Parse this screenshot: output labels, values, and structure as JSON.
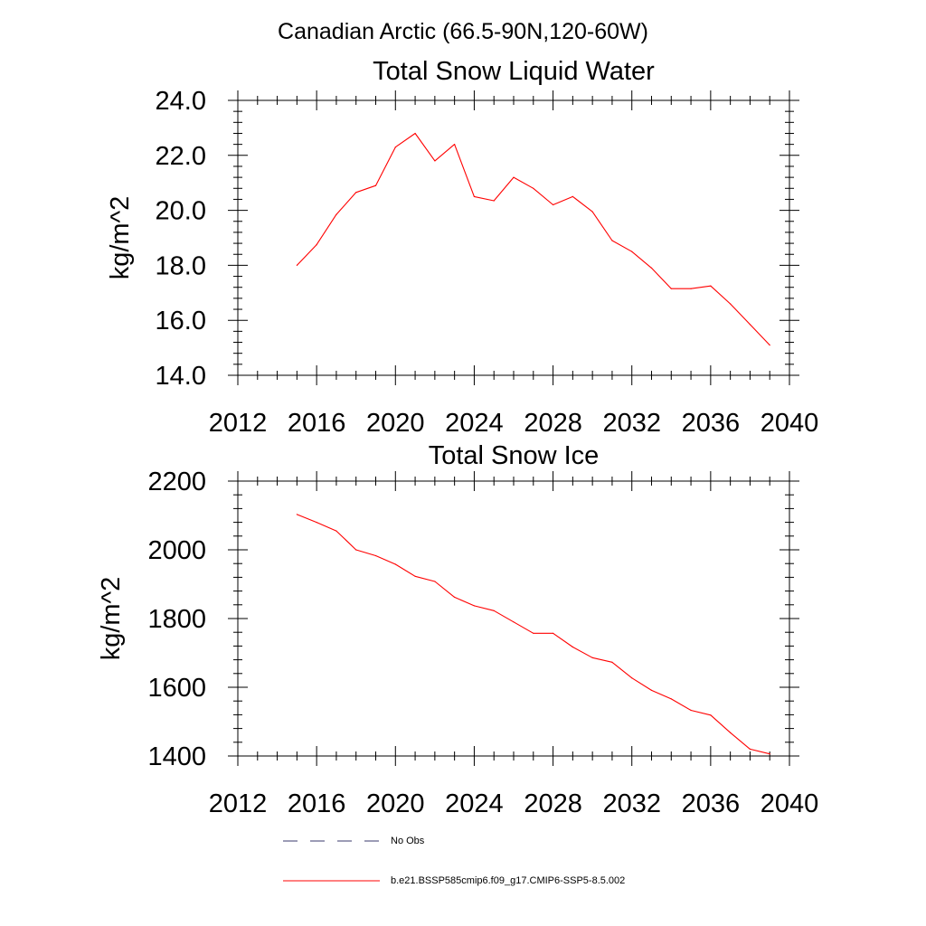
{
  "page": {
    "suptitle": "Canadian Arctic (66.5-90N,120-60W)"
  },
  "chart_data": [
    {
      "type": "line",
      "title": "Total Snow Liquid Water",
      "ylabel": "kg/m^2",
      "xlabel": "",
      "xlim": [
        2012,
        2040
      ],
      "ylim": [
        14,
        24
      ],
      "xticks": [
        2012,
        2016,
        2020,
        2024,
        2028,
        2032,
        2036,
        2040
      ],
      "xtick_labels": [
        "2012",
        "2016",
        "2020",
        "2024",
        "2028",
        "2032",
        "2036",
        "2040"
      ],
      "yticks": [
        14,
        16,
        18,
        20,
        22,
        24
      ],
      "ytick_labels": [
        "14.0",
        "16.0",
        "18.0",
        "20.0",
        "22.0",
        "24.0"
      ],
      "grid": false,
      "series": [
        {
          "name": "b.e21.BSSP585cmip6.f09_g17.CMIP6-SSP5-8.5.002",
          "color": "#ff0000",
          "x": [
            2015,
            2016,
            2017,
            2018,
            2019,
            2020,
            2021,
            2022,
            2023,
            2024,
            2025,
            2026,
            2027,
            2028,
            2029,
            2030,
            2031,
            2032,
            2033,
            2034,
            2035,
            2036,
            2037,
            2038,
            2039
          ],
          "y": [
            18.0,
            18.75,
            19.85,
            20.65,
            20.9,
            22.3,
            22.8,
            21.8,
            22.4,
            20.5,
            20.35,
            21.2,
            20.8,
            20.2,
            20.5,
            19.95,
            18.9,
            18.5,
            17.9,
            17.15,
            17.15,
            17.25,
            16.6,
            15.85,
            15.1
          ]
        }
      ]
    },
    {
      "type": "line",
      "title": "Total Snow Ice",
      "ylabel": "kg/m^2",
      "xlabel": "",
      "xlim": [
        2012,
        2040
      ],
      "ylim": [
        1400,
        2200
      ],
      "xticks": [
        2012,
        2016,
        2020,
        2024,
        2028,
        2032,
        2036,
        2040
      ],
      "xtick_labels": [
        "2012",
        "2016",
        "2020",
        "2024",
        "2028",
        "2032",
        "2036",
        "2040"
      ],
      "yticks": [
        1400,
        1600,
        1800,
        2000,
        2200
      ],
      "ytick_labels": [
        "1400",
        "1600",
        "1800",
        "2000",
        "2200"
      ],
      "grid": false,
      "series": [
        {
          "name": "b.e21.BSSP585cmip6.f09_g17.CMIP6-SSP5-8.5.002",
          "color": "#ff0000",
          "x": [
            2015,
            2016,
            2017,
            2018,
            2019,
            2020,
            2021,
            2022,
            2023,
            2024,
            2025,
            2026,
            2027,
            2028,
            2029,
            2030,
            2031,
            2032,
            2033,
            2034,
            2035,
            2036,
            2037,
            2038,
            2039
          ],
          "y": [
            2103,
            2080,
            2055,
            2000,
            1983,
            1958,
            1923,
            1908,
            1862,
            1837,
            1823,
            1790,
            1757,
            1757,
            1717,
            1686,
            1673,
            1627,
            1591,
            1566,
            1533,
            1519,
            1468,
            1420,
            1406
          ]
        }
      ]
    }
  ],
  "legend": {
    "entries": [
      {
        "label": "No Obs",
        "style": "dashed",
        "color": "#3a3a6e"
      },
      {
        "label": "b.e21.BSSP585cmip6.f09_g17.CMIP6-SSP5-8.5.002",
        "style": "solid",
        "color": "#ff0000"
      }
    ]
  }
}
